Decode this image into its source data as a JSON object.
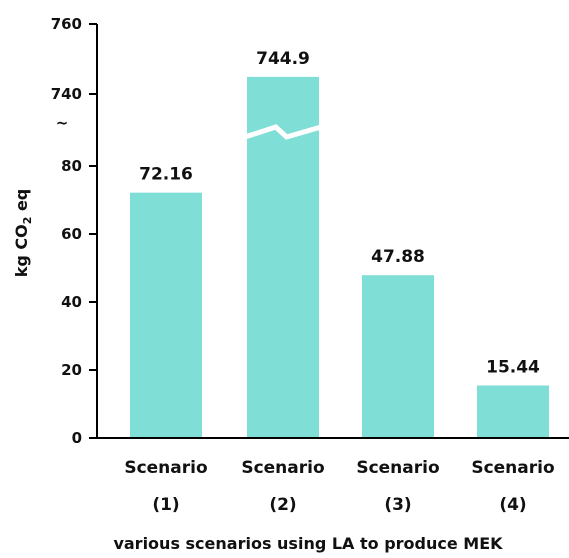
{
  "chart_data": {
    "type": "bar",
    "categories": [
      [
        "Scenario",
        "(1)"
      ],
      [
        "Scenario",
        "(2)"
      ],
      [
        "Scenario",
        "(3)"
      ],
      [
        "Scenario",
        "(4)"
      ]
    ],
    "values": [
      72.16,
      744.9,
      47.88,
      15.44
    ],
    "data_labels": [
      "72.16",
      "744.9",
      "47.88",
      "15.44"
    ],
    "xlabel": "various scenarios using LA to produce MEK",
    "ylabel": {
      "prefix": "kg CO",
      "subscript": "2",
      "suffix": " eq"
    },
    "axis_break": {
      "lower_range": [
        0,
        80
      ],
      "upper_range": [
        740,
        760
      ],
      "break_mark": "~"
    },
    "y_ticks_lower": [
      0,
      20,
      40,
      60,
      80
    ],
    "y_ticks_upper": [
      740,
      760
    ],
    "bar_color": "#7fded6",
    "axis_color": "#000000",
    "grid": false,
    "legend": "none"
  }
}
